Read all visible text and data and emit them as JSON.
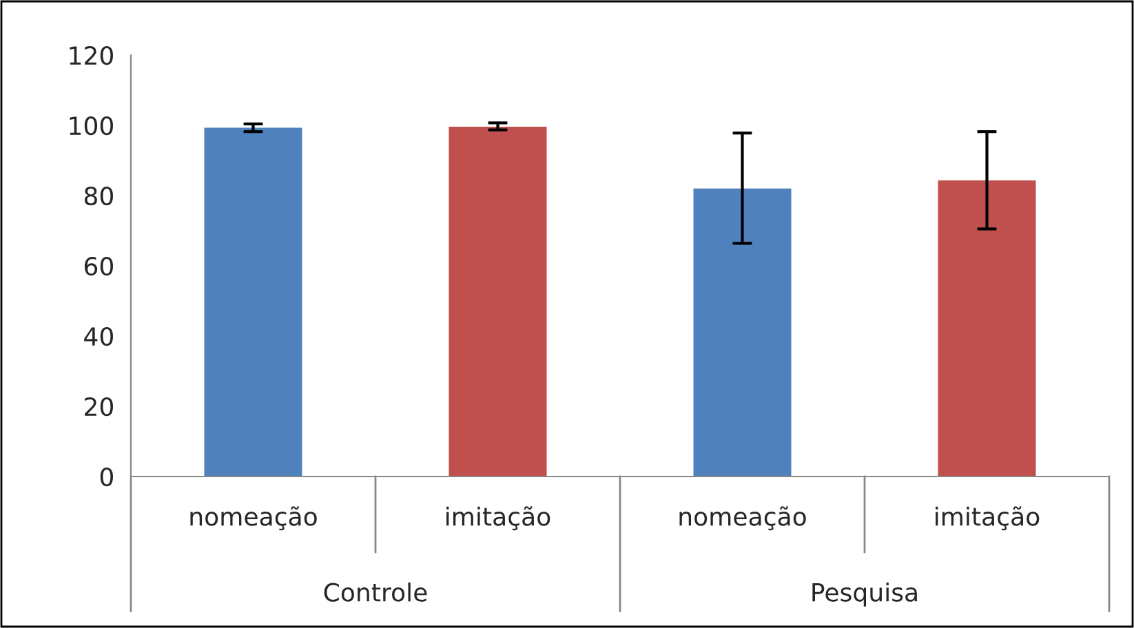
{
  "chart_data": {
    "type": "bar",
    "categories": [
      "nomeação",
      "imitação",
      "nomeação",
      "imitação"
    ],
    "values": [
      99.3,
      99.6,
      82.0,
      84.3
    ],
    "colors": [
      "#4f81bd",
      "#c0504d",
      "#4f81bd",
      "#c0504d"
    ],
    "errors": [
      [
        98.2,
        100.4
      ],
      [
        98.7,
        100.7
      ],
      [
        66.4,
        97.8
      ],
      [
        70.5,
        98.2
      ]
    ],
    "ylim": [
      0,
      120
    ],
    "yticks": [
      0,
      20,
      40,
      60,
      80,
      100,
      120
    ],
    "annotations": [
      "Controle",
      "Pesquisa"
    ],
    "grid": false,
    "legend": false
  }
}
